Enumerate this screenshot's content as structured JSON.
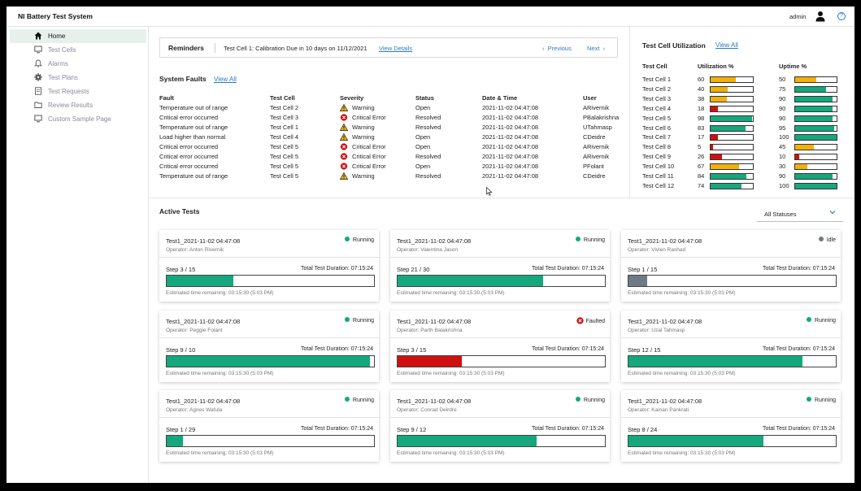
{
  "app": {
    "title": "NI Battery Test System",
    "user": "admin",
    "help": "?"
  },
  "sidebar": {
    "items": [
      {
        "label": "Home",
        "icon": "home-icon",
        "active": true
      },
      {
        "label": "Test Cells",
        "icon": "monitor-icon"
      },
      {
        "label": "Alarms",
        "icon": "bell-icon"
      },
      {
        "label": "Test Plans",
        "icon": "gear-icon"
      },
      {
        "label": "Test Requests",
        "icon": "document-icon"
      },
      {
        "label": "Review Results",
        "icon": "folder-icon"
      },
      {
        "label": "Custom Sample Page",
        "icon": "monitor-icon"
      }
    ]
  },
  "reminders": {
    "title": "Reminders",
    "text": "Test Cell 1: Calibration Due in 10 days on 11/12/2021",
    "link": "View Details",
    "prev": "Previous",
    "next": "Next"
  },
  "faults": {
    "title": "System Faults",
    "link": "View All",
    "columns": [
      "Fault",
      "Test Cell",
      "Severity",
      "Status",
      "Date & Time",
      "User"
    ],
    "rows": [
      {
        "fault": "Temperature out of range",
        "cell": "Test Cell 2",
        "severity": "Warning",
        "status": "Open",
        "date": "2021-11-02 04:47:08",
        "user": "ARivernik"
      },
      {
        "fault": "Critical error occurred",
        "cell": "Test Cell 3",
        "severity": "Critical Error",
        "status": "Resolved",
        "date": "2021-11-02 04:47:08",
        "user": "PBalakrishna"
      },
      {
        "fault": "Temperature out of range",
        "cell": "Test Cell 1",
        "severity": "Warning",
        "status": "Resolved",
        "date": "2021-11-02 04:47:08",
        "user": "UTahmasp"
      },
      {
        "fault": "Load higher than normal",
        "cell": "Test Cell 4",
        "severity": "Warning",
        "status": "Open",
        "date": "2021-11-02 04:47:08",
        "user": "CDeidre"
      },
      {
        "fault": "Critical error occurred",
        "cell": "Test Cell 5",
        "severity": "Critical Error",
        "status": "Open",
        "date": "2021-11-02 04:47:08",
        "user": "ARivernik"
      },
      {
        "fault": "Critical error occurred",
        "cell": "Test Cell 5",
        "severity": "Critical Error",
        "status": "Resolved",
        "date": "2021-11-02 04:47:08",
        "user": "ARivernik"
      },
      {
        "fault": "Critical error occurred",
        "cell": "Test Cell 5",
        "severity": "Critical Error",
        "status": "Open",
        "date": "2021-11-02 04:47:08",
        "user": "PFolant"
      },
      {
        "fault": "Temperature out of range",
        "cell": "Test Cell 5",
        "severity": "Warning",
        "status": "Resolved",
        "date": "2021-11-02 04:47:08",
        "user": "CDeidre"
      }
    ]
  },
  "utilization": {
    "title": "Test Cell Utilization",
    "link": "View All",
    "columns": [
      "Test Cell",
      "Utilization %",
      "Uptime %"
    ],
    "rows": [
      {
        "cell": "Test Cell 1",
        "util": 60,
        "uptime": 50
      },
      {
        "cell": "Test Cell 2",
        "util": 40,
        "uptime": 75
      },
      {
        "cell": "Test Cell 3",
        "util": 38,
        "uptime": 90
      },
      {
        "cell": "Test Cell 4",
        "util": 18,
        "uptime": 90
      },
      {
        "cell": "Test Cell 5",
        "util": 98,
        "uptime": 90
      },
      {
        "cell": "Test Cell 6",
        "util": 83,
        "uptime": 95
      },
      {
        "cell": "Test Cell 7",
        "util": 17,
        "uptime": 100
      },
      {
        "cell": "Test Cell 8",
        "util": 5,
        "uptime": 45
      },
      {
        "cell": "Test Cell 9",
        "util": 26,
        "uptime": 10
      },
      {
        "cell": "Test Cell 10",
        "util": 67,
        "uptime": 30
      },
      {
        "cell": "Test Cell 11",
        "util": 84,
        "uptime": 90
      },
      {
        "cell": "Test Cell 12",
        "util": 74,
        "uptime": 100
      }
    ]
  },
  "active_tests": {
    "title": "Active Tests",
    "filter": "All Statuses",
    "cards": [
      {
        "name": "Test1_2021-11-02 04:47:08",
        "operator": "Operator: Anton Rivernik",
        "status": "Running",
        "step": "Step 3 / 15",
        "duration": "Total Test Duration: 07:15:24",
        "progress": 0.32,
        "eta": "Estimated time remaining: 03:15:30 (5:03 PM)"
      },
      {
        "name": "Test1_2021-11-02 04:47:08",
        "operator": "Operator: Valentina Jason",
        "status": "Running",
        "step": "Step 21 / 30",
        "duration": "Total Test Duration: 07:15:24",
        "progress": 0.7,
        "eta": "Estimated time remaining: 03:15:30 (5:03 PM)"
      },
      {
        "name": "Test1_2021-11-02 04:47:08",
        "operator": "Operator: Vivien Rashad",
        "status": "Idle",
        "step": "Step 1 / 15",
        "duration": "Total Test Duration: 07:15:24",
        "progress": 0.09,
        "eta": "Estimated time remaining: 03:15:30 (5:03 PM)"
      },
      {
        "name": "Test1_2021-11-02 04:47:08",
        "operator": "Operator: Peggie Folant",
        "status": "Running",
        "step": "Step 9 / 10",
        "duration": "Total Test Duration: 07:15:24",
        "progress": 0.98,
        "eta": "Estimated time remaining: 03:15:30 (5:03 PM)"
      },
      {
        "name": "Test1_2021-11-02 04:47:08",
        "operator": "Operator: Parth Balakrishna",
        "status": "Faulted",
        "step": "Step 3 / 15",
        "duration": "Total Test Duration: 07:15:24",
        "progress": 0.31,
        "eta": "Estimated time remaining: 03:15:30 (5:03 PM)"
      },
      {
        "name": "Test1_2021-11-02 04:47:08",
        "operator": "Operator: Uzal Tahmasp",
        "status": "Running",
        "step": "Step 12 / 15",
        "duration": "Total Test Duration: 07:15:24",
        "progress": 0.84,
        "eta": "Estimated time remaining: 03:15:30 (5:03 PM)"
      },
      {
        "name": "Test1_2021-11-02 04:47:08",
        "operator": "Operator: Agnes Wafula",
        "status": "Running",
        "step": "Step 1 / 29",
        "duration": "Total Test Duration: 07:15:24",
        "progress": 0.08,
        "eta": "Estimated time remaining: 03:15:30 (5:03 PM)"
      },
      {
        "name": "Test1_2021-11-02 04:47:08",
        "operator": "Operator: Conrad Deirdre",
        "status": "Running",
        "step": "Step 9 / 12",
        "duration": "Total Test Duration: 07:15:24",
        "progress": 0.67,
        "eta": "Estimated time remaining: 03:15:30 (5:03 PM)"
      },
      {
        "name": "Test1_2021-11-02 04:47:08",
        "operator": "Operator: Kainan Pankrati",
        "status": "Running",
        "step": "Step 8 / 24",
        "duration": "Total Test Duration: 07:15:24",
        "progress": 0.65,
        "eta": "Estimated time remaining: 03:15:30 (5:03 PM)"
      }
    ]
  },
  "colors": {
    "running": "#14a87c",
    "idle": "#6e7a88",
    "faulted": "#d01010",
    "warning": "#f2b00c",
    "link": "#2a7ac4",
    "active_nav_bg": "#e7f1ec"
  }
}
